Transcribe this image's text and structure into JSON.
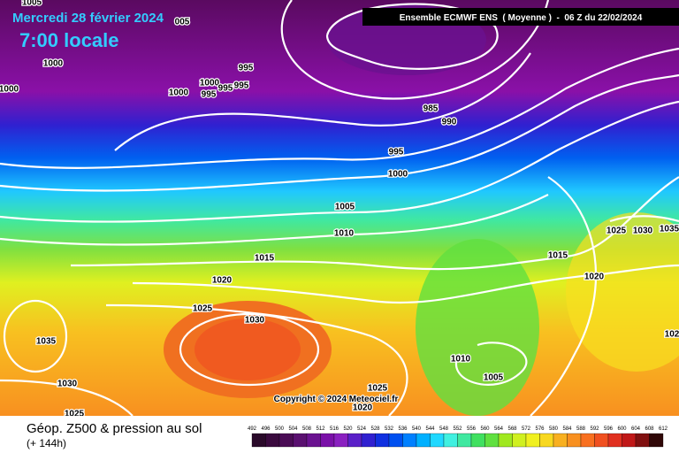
{
  "header": {
    "date": "Mercredi 28 février 2024",
    "time": "7:00 locale",
    "model": "Ensemble ECMWF ENS  ( Moyenne )  -  06 Z du 22/02/2024"
  },
  "isobar_labels": [
    "1005",
    "005",
    "1000",
    "1000",
    "995",
    "1000",
    "1000",
    "995",
    "995",
    "995",
    "985",
    "990",
    "995",
    "1000",
    "1005",
    "1010",
    "1015",
    "1020",
    "1025",
    "1030",
    "1035",
    "1030",
    "1025",
    "1025",
    "1030",
    "1035",
    "1015",
    "1020",
    "1025",
    "1020",
    "1010",
    "1005",
    "102"
  ],
  "copyright": "Copyright © 2024 Meteociel.fr",
  "footer": {
    "title": "Géop. Z500 & pression au sol",
    "lead": "(+ 144h)"
  },
  "colorbar": {
    "ticks": [
      492,
      496,
      500,
      504,
      508,
      512,
      516,
      520,
      524,
      528,
      532,
      536,
      540,
      544,
      548,
      552,
      556,
      560,
      564,
      568,
      572,
      576,
      580,
      584,
      588,
      592,
      596,
      600,
      604,
      608,
      612
    ],
    "colors": [
      "#2a0a2a",
      "#3a0a3e",
      "#4a0c55",
      "#5a1070",
      "#6a1290",
      "#7a10a8",
      "#8a20c0",
      "#5a20c8",
      "#3020d0",
      "#1030e0",
      "#0050f0",
      "#0080ff",
      "#00b0ff",
      "#20d8ff",
      "#40f0e0",
      "#40e8a0",
      "#40e060",
      "#60e040",
      "#a0e820",
      "#d0f020",
      "#f0f020",
      "#f8d820",
      "#f8b020",
      "#f89020",
      "#f87020",
      "#f05020",
      "#e03020",
      "#c01818",
      "#801010",
      "#300808"
    ]
  }
}
